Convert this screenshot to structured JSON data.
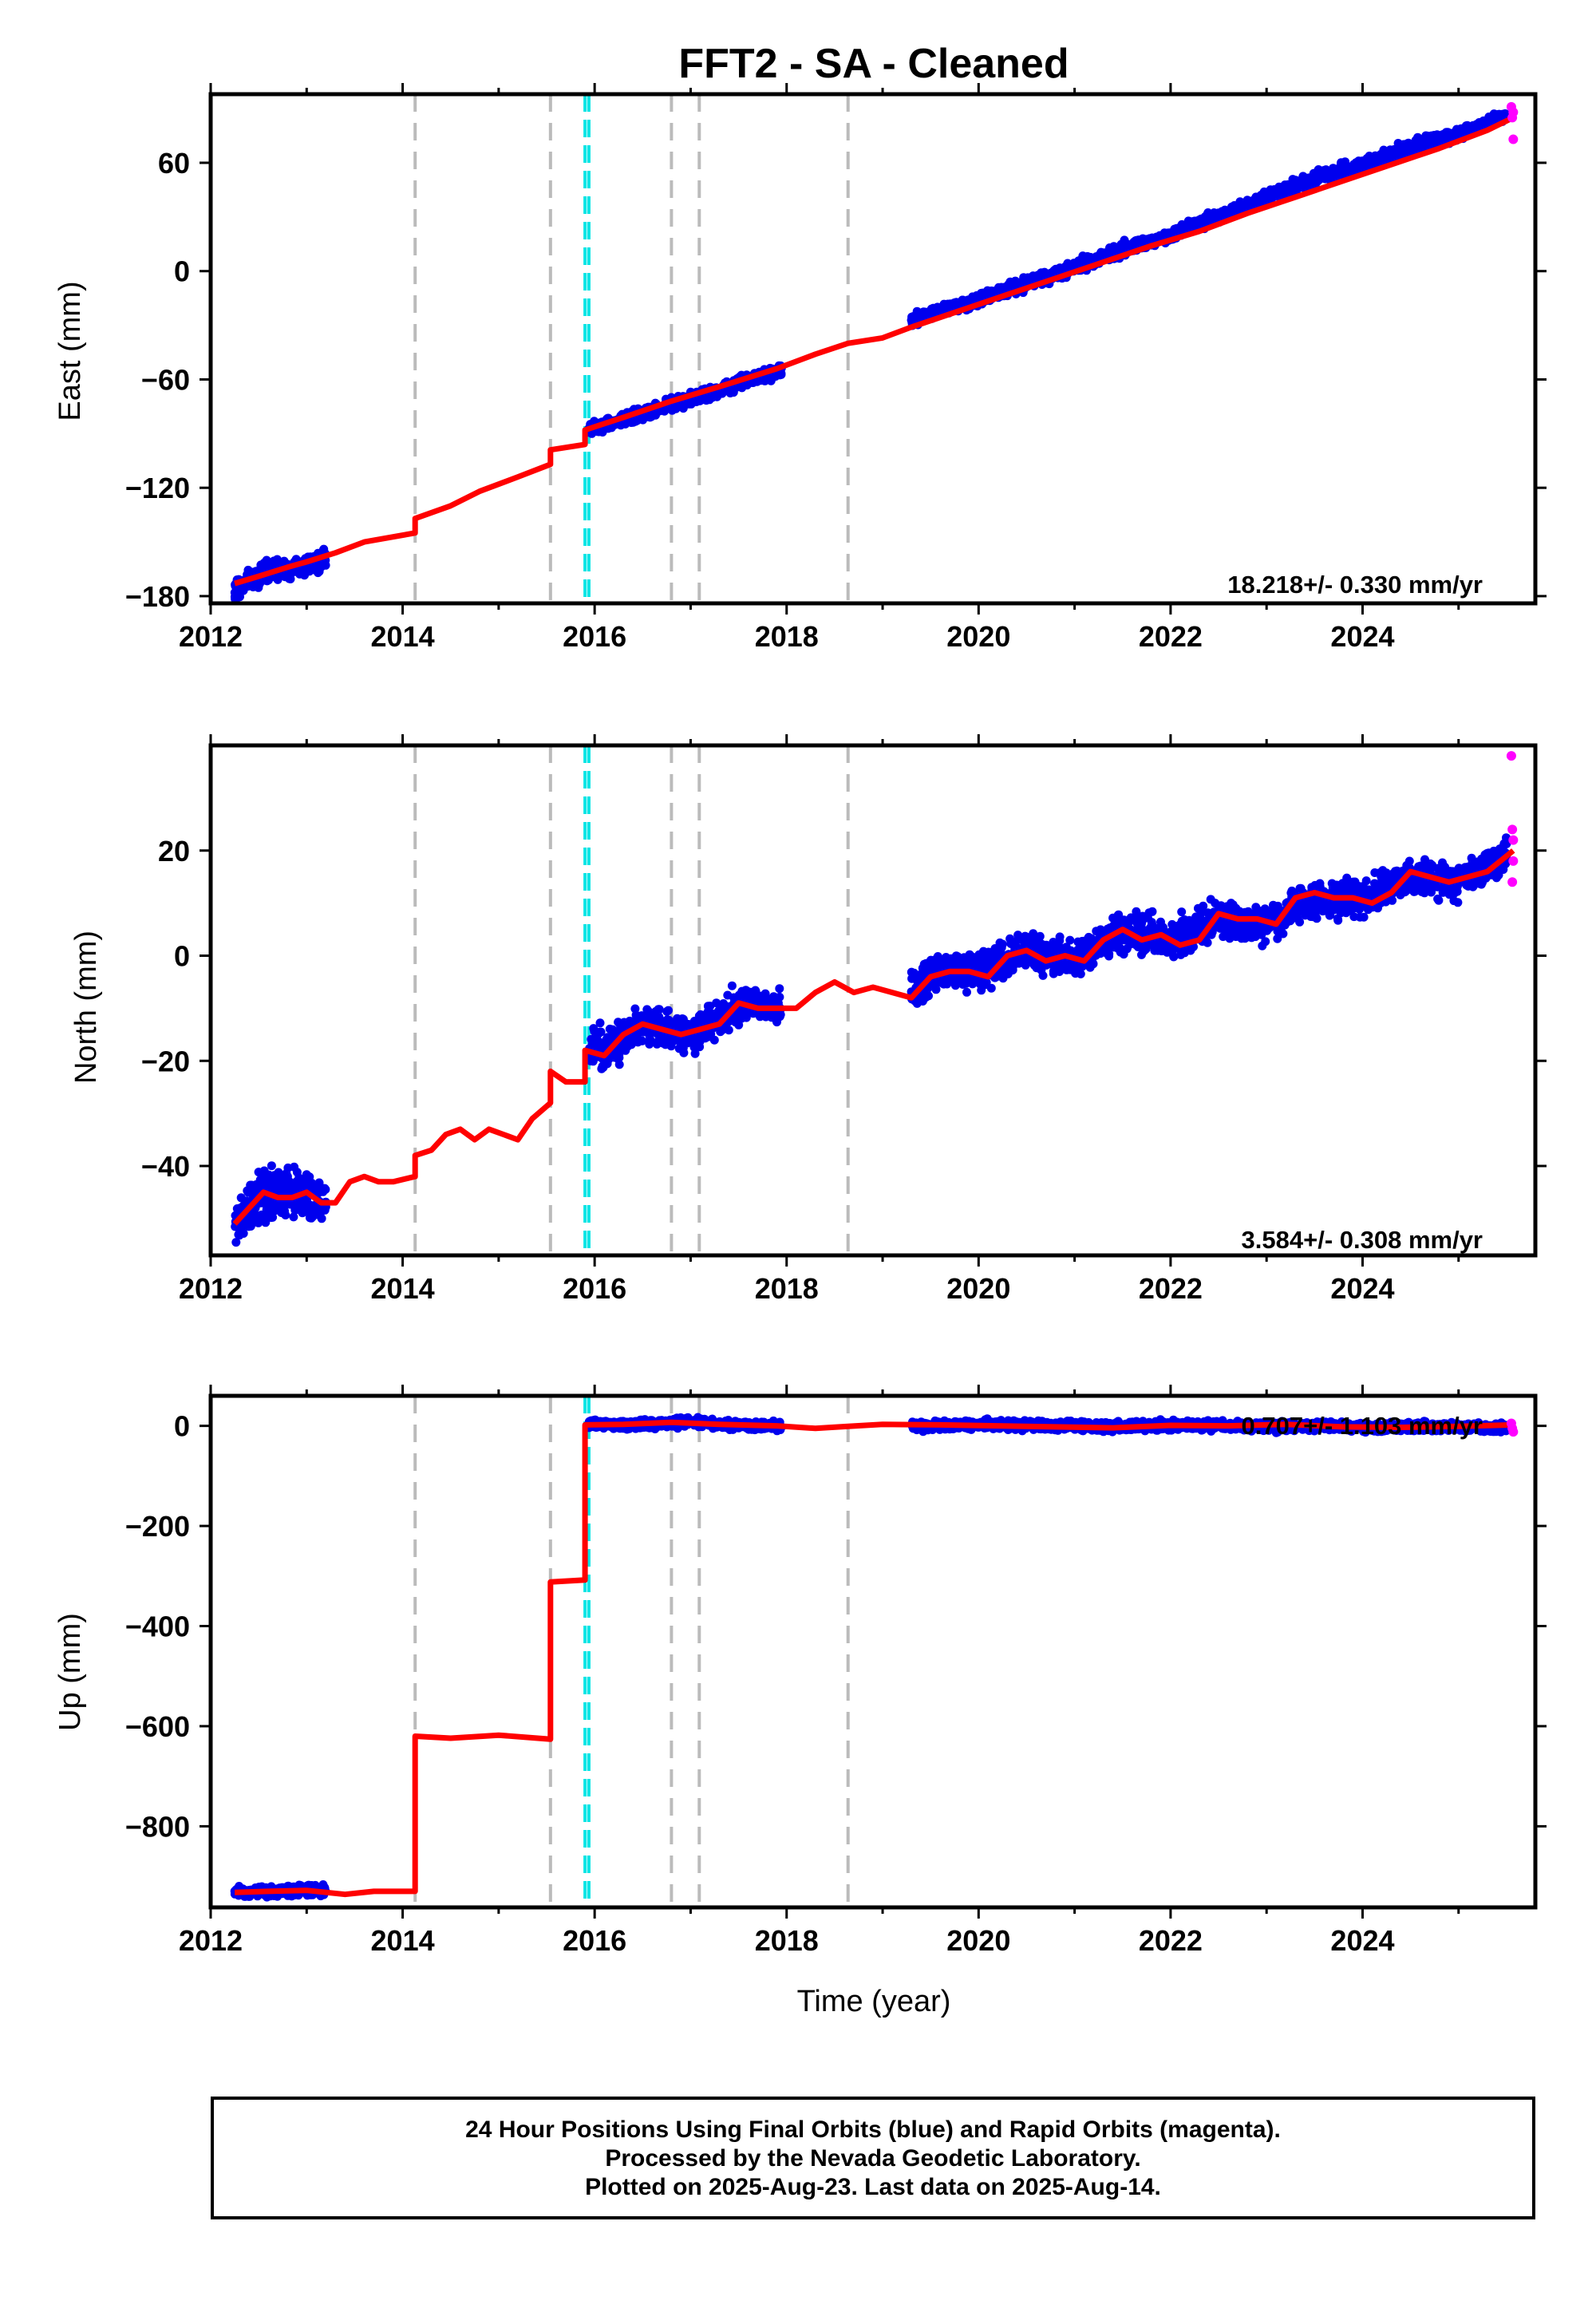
{
  "figure": {
    "title": "FFT2  - SA - Cleaned",
    "xlabel": "Time (year)",
    "footer": [
      "24 Hour Positions Using Final Orbits (blue) and Rapid Orbits (magenta).",
      "Processed by the Nevada Geodetic Laboratory.",
      "Plotted on 2025-Aug-23. Last data on 2025-Aug-14."
    ],
    "colors": {
      "final": "#0000ee",
      "rapid": "#ff00ff",
      "model": "#ff0000",
      "event_gray": "#bbbbbb",
      "event_cyan": "#00e5e5"
    }
  },
  "chart_data": [
    {
      "type": "scatter",
      "ylabel": "East (mm)",
      "xlim": [
        2012.0,
        2025.8
      ],
      "ylim": [
        -184,
        98
      ],
      "x_ticks": [
        2012,
        2014,
        2016,
        2018,
        2020,
        2022,
        2024
      ],
      "x_tick_labels": [
        "2012",
        "2014",
        "2016",
        "2018",
        "2020",
        "2022",
        "2024"
      ],
      "y_ticks": [
        -180,
        -120,
        -60,
        0,
        60
      ],
      "y_tick_labels": [
        "−180",
        "−120",
        "−60",
        "0",
        "60"
      ],
      "rate_label": "18.218+/- 0.330 mm/yr",
      "gray_events": [
        2014.13,
        2015.54,
        2016.8,
        2017.09,
        2018.64
      ],
      "cyan_events": [
        2015.9,
        2015.94
      ],
      "final_segments": [
        {
          "x": [
            2012.25,
            2012.4,
            2012.6,
            2012.8,
            2013.0,
            2013.2
          ],
          "y": [
            -176,
            -171,
            -167,
            -165,
            -162,
            -160
          ],
          "scatter": 5
        },
        {
          "x": [
            2015.94,
            2016.2,
            2016.5,
            2016.8,
            2017.0,
            2017.3,
            2017.6,
            2017.95
          ],
          "y": [
            -88,
            -84,
            -79,
            -74,
            -71,
            -66,
            -60,
            -55
          ],
          "scatter": 3
        },
        {
          "x": [
            2019.3,
            2019.6,
            2020.0,
            2020.5,
            2021.0,
            2021.5,
            2022.0,
            2022.5,
            2023.0,
            2023.5,
            2024.0,
            2024.5,
            2025.0,
            2025.5
          ],
          "y": [
            -27,
            -22,
            -16,
            -7,
            2,
            12,
            20,
            30,
            41,
            51,
            59,
            69,
            76,
            86
          ],
          "scatter": 3
        }
      ],
      "rapid_points": [
        {
          "x": 2025.55,
          "y": 91
        },
        {
          "x": 2025.56,
          "y": 85
        },
        {
          "x": 2025.57,
          "y": 88
        },
        {
          "x": 2025.57,
          "y": 73
        }
      ],
      "model": {
        "x": [
          2012.25,
          2012.5,
          2012.8,
          2013.0,
          2013.3,
          2013.6,
          2014.13,
          2014.13,
          2014.5,
          2014.8,
          2015.2,
          2015.54,
          2015.54,
          2015.9,
          2015.9,
          2016.3,
          2016.8,
          2017.3,
          2017.9,
          2018.3,
          2018.64,
          2019.0,
          2019.3,
          2019.8,
          2020.3,
          2020.8,
          2021.3,
          2021.8,
          2022.3,
          2022.8,
          2023.3,
          2023.8,
          2024.3,
          2024.8,
          2025.3,
          2025.57
        ],
        "y": [
          -173,
          -169,
          -164,
          -161,
          -156,
          -150,
          -145,
          -137,
          -130,
          -122,
          -114,
          -107,
          -99,
          -96,
          -88,
          -81,
          -72,
          -64,
          -54,
          -46,
          -40,
          -37,
          -31,
          -22,
          -13,
          -4,
          5,
          14,
          22,
          32,
          41,
          50,
          59,
          68,
          78,
          85
        ]
      }
    },
    {
      "type": "scatter",
      "ylabel": "North (mm)",
      "xlim": [
        2012.0,
        2025.8
      ],
      "ylim": [
        -57,
        40
      ],
      "x_ticks": [
        2012,
        2014,
        2016,
        2018,
        2020,
        2022,
        2024
      ],
      "x_tick_labels": [
        "2012",
        "2014",
        "2016",
        "2018",
        "2020",
        "2022",
        "2024"
      ],
      "y_ticks": [
        -40,
        -20,
        0,
        20
      ],
      "y_tick_labels": [
        "−40",
        "−20",
        "0",
        "20"
      ],
      "rate_label": "3.584+/- 0.308 mm/yr",
      "gray_events": [
        2014.13,
        2015.54,
        2016.8,
        2017.09,
        2018.64
      ],
      "cyan_events": [
        2015.9,
        2015.94
      ],
      "final_segments": [
        {
          "x": [
            2012.25,
            2012.45,
            2012.65,
            2012.85,
            2013.05,
            2013.2
          ],
          "y": [
            -51,
            -47,
            -45,
            -45,
            -46,
            -47
          ],
          "scatter": 4
        },
        {
          "x": [
            2015.94,
            2016.2,
            2016.5,
            2016.8,
            2017.0,
            2017.3,
            2017.6,
            2017.95
          ],
          "y": [
            -18,
            -17,
            -13,
            -14,
            -15,
            -12,
            -9,
            -10
          ],
          "scatter": 3
        },
        {
          "x": [
            2019.3,
            2019.6,
            2020.0,
            2020.5,
            2021.0,
            2021.5,
            2022.0,
            2022.5,
            2023.0,
            2023.5,
            2024.0,
            2024.5,
            2025.0,
            2025.5
          ],
          "y": [
            -6,
            -3,
            -3,
            1,
            -1,
            5,
            3,
            7,
            6,
            11,
            11,
            15,
            14,
            19
          ],
          "scatter": 3
        }
      ],
      "rapid_points": [
        {
          "x": 2025.55,
          "y": 38
        },
        {
          "x": 2025.56,
          "y": 24
        },
        {
          "x": 2025.57,
          "y": 22
        },
        {
          "x": 2025.57,
          "y": 18
        },
        {
          "x": 2025.56,
          "y": 14
        }
      ],
      "model": {
        "x": [
          2012.25,
          2012.4,
          2012.55,
          2012.7,
          2012.85,
          2013.0,
          2013.15,
          2013.3,
          2013.45,
          2013.6,
          2013.75,
          2013.9,
          2014.13,
          2014.13,
          2014.3,
          2014.45,
          2014.6,
          2014.75,
          2014.9,
          2015.05,
          2015.2,
          2015.35,
          2015.54,
          2015.54,
          2015.7,
          2015.9,
          2015.9,
          2016.1,
          2016.3,
          2016.5,
          2016.7,
          2016.9,
          2017.1,
          2017.3,
          2017.5,
          2017.7,
          2017.9,
          2018.1,
          2018.3,
          2018.5,
          2018.7,
          2018.9,
          2019.1,
          2019.3,
          2019.5,
          2019.7,
          2019.9,
          2020.1,
          2020.3,
          2020.5,
          2020.7,
          2020.9,
          2021.1,
          2021.3,
          2021.5,
          2021.7,
          2021.9,
          2022.1,
          2022.3,
          2022.5,
          2022.7,
          2022.9,
          2023.1,
          2023.3,
          2023.5,
          2023.7,
          2023.9,
          2024.1,
          2024.3,
          2024.5,
          2024.7,
          2024.9,
          2025.1,
          2025.3,
          2025.57
        ],
        "y": [
          -51,
          -48,
          -45,
          -46,
          -46,
          -45,
          -47,
          -47,
          -43,
          -42,
          -43,
          -43,
          -42,
          -38,
          -37,
          -34,
          -33,
          -35,
          -33,
          -34,
          -35,
          -31,
          -28,
          -22,
          -24,
          -24,
          -18,
          -19,
          -15,
          -13,
          -14,
          -15,
          -14,
          -13,
          -9,
          -10,
          -10,
          -10,
          -7,
          -5,
          -7,
          -6,
          -7,
          -8,
          -4,
          -3,
          -3,
          -4,
          0,
          1,
          -1,
          0,
          -1,
          3,
          5,
          3,
          4,
          2,
          3,
          8,
          7,
          7,
          6,
          11,
          12,
          11,
          11,
          10,
          12,
          16,
          15,
          14,
          15,
          16,
          20
        ]
      }
    },
    {
      "type": "scatter",
      "ylabel": "Up (mm)",
      "xlim": [
        2012.0,
        2025.8
      ],
      "ylim": [
        -962,
        60
      ],
      "x_ticks": [
        2012,
        2014,
        2016,
        2018,
        2020,
        2022,
        2024
      ],
      "x_tick_labels": [
        "2012",
        "2014",
        "2016",
        "2018",
        "2020",
        "2022",
        "2024"
      ],
      "y_ticks": [
        -800,
        -600,
        -400,
        -200,
        0
      ],
      "y_tick_labels": [
        "−800",
        "−600",
        "−400",
        "−200",
        "0"
      ],
      "rate_label": "0.707+/- 1.103 mm/yr",
      "gray_events": [
        2014.13,
        2015.54,
        2016.8,
        2017.09,
        2018.64
      ],
      "cyan_events": [
        2015.9,
        2015.94
      ],
      "final_segments": [
        {
          "x": [
            2012.25,
            2012.5,
            2012.75,
            2013.0,
            2013.2
          ],
          "y": [
            -932,
            -930,
            -929,
            -928,
            -927
          ],
          "scatter": 10
        },
        {
          "x": [
            2015.94,
            2016.3,
            2016.7,
            2017.0,
            2017.4,
            2017.95
          ],
          "y": [
            3,
            2,
            5,
            8,
            2,
            0
          ],
          "scatter": 8
        },
        {
          "x": [
            2019.3,
            2020.0,
            2020.7,
            2021.4,
            2022.1,
            2022.8,
            2023.5,
            2024.2,
            2024.9,
            2025.5
          ],
          "y": [
            0,
            3,
            1,
            -2,
            2,
            -1,
            0,
            -3,
            -2,
            -4
          ],
          "scatter": 8
        }
      ],
      "rapid_points": [
        {
          "x": 2025.55,
          "y": 5
        },
        {
          "x": 2025.56,
          "y": -5
        },
        {
          "x": 2025.57,
          "y": -12
        }
      ],
      "model": {
        "x": [
          2012.25,
          2012.6,
          2013.0,
          2013.4,
          2013.7,
          2014.13,
          2014.13,
          2014.5,
          2015.0,
          2015.54,
          2015.54,
          2015.9,
          2015.9,
          2016.3,
          2016.8,
          2017.3,
          2017.9,
          2018.3,
          2018.64,
          2019.0,
          2019.6,
          2020.2,
          2020.8,
          2021.4,
          2022.0,
          2022.6,
          2023.2,
          2023.8,
          2024.4,
          2025.0,
          2025.57
        ],
        "y": [
          -932,
          -930,
          -928,
          -936,
          -930,
          -930,
          -620,
          -624,
          -618,
          -626,
          -312,
          -308,
          2,
          3,
          7,
          3,
          0,
          -5,
          -1,
          3,
          2,
          0,
          -2,
          -4,
          1,
          0,
          3,
          -2,
          -3,
          -1,
          2
        ]
      }
    }
  ]
}
